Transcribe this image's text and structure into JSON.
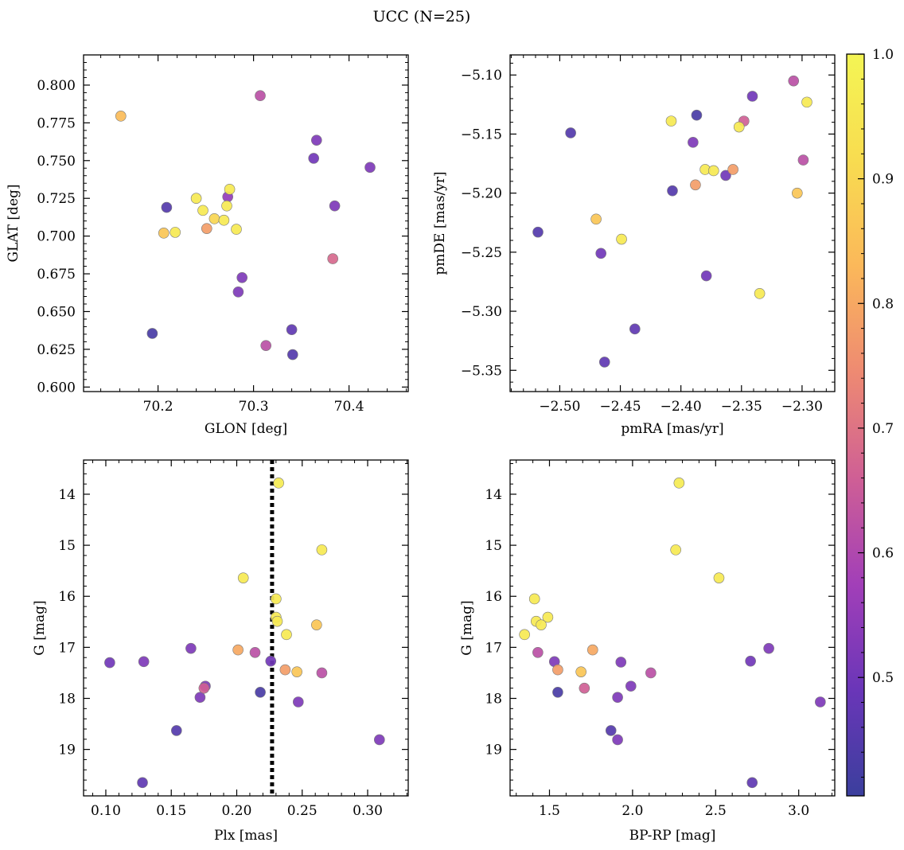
{
  "suptitle": "UCC (N=25)",
  "colorbar": {
    "range": [
      0.405,
      1.0
    ],
    "ticks": [
      0.5,
      0.6,
      0.7,
      0.8,
      0.9,
      1.0
    ],
    "tick_labels": [
      "0.5",
      "0.6",
      "0.7",
      "0.8",
      "0.9",
      "1.0"
    ],
    "colormap": "plasma",
    "stops": [
      "#3b3f9d",
      "#6a36b8",
      "#a23fb8",
      "#cf5f95",
      "#ee8a72",
      "#fbb85a",
      "#f8dc50",
      "#f4f554"
    ]
  },
  "chart_data": [
    {
      "type": "scatter",
      "title": "",
      "xlabel": "GLON [deg]",
      "ylabel": "GLAT [deg]",
      "xlim": [
        70.122,
        70.462
      ],
      "ylim": [
        0.597,
        0.82
      ],
      "y_inverted": false,
      "xticks": [
        70.2,
        70.3,
        70.4
      ],
      "xtick_labels": [
        "70.2",
        "70.3",
        "70.4"
      ],
      "yticks": [
        0.6,
        0.625,
        0.65,
        0.675,
        0.7,
        0.725,
        0.75,
        0.775,
        0.8
      ],
      "ytick_labels": [
        "0.600",
        "0.625",
        "0.650",
        "0.675",
        "0.700",
        "0.725",
        "0.750",
        "0.775",
        "0.800"
      ],
      "points": [
        {
          "x": 70.161,
          "y": 0.7795,
          "c": 0.84
        },
        {
          "x": 70.307,
          "y": 0.793,
          "c": 0.62
        },
        {
          "x": 70.366,
          "y": 0.7635,
          "c": 0.52
        },
        {
          "x": 70.363,
          "y": 0.7515,
          "c": 0.5
        },
        {
          "x": 70.422,
          "y": 0.7455,
          "c": 0.52
        },
        {
          "x": 70.385,
          "y": 0.72,
          "c": 0.52
        },
        {
          "x": 70.209,
          "y": 0.719,
          "c": 0.45
        },
        {
          "x": 70.24,
          "y": 0.725,
          "c": 0.96
        },
        {
          "x": 70.273,
          "y": 0.726,
          "c": 0.55
        },
        {
          "x": 70.275,
          "y": 0.731,
          "c": 0.96
        },
        {
          "x": 70.247,
          "y": 0.717,
          "c": 0.96
        },
        {
          "x": 70.259,
          "y": 0.7115,
          "c": 0.9
        },
        {
          "x": 70.269,
          "y": 0.7105,
          "c": 0.96
        },
        {
          "x": 70.272,
          "y": 0.72,
          "c": 0.96
        },
        {
          "x": 70.206,
          "y": 0.702,
          "c": 0.86
        },
        {
          "x": 70.218,
          "y": 0.7025,
          "c": 0.96
        },
        {
          "x": 70.251,
          "y": 0.705,
          "c": 0.78
        },
        {
          "x": 70.282,
          "y": 0.7045,
          "c": 0.96
        },
        {
          "x": 70.383,
          "y": 0.685,
          "c": 0.68
        },
        {
          "x": 70.288,
          "y": 0.6725,
          "c": 0.52
        },
        {
          "x": 70.284,
          "y": 0.663,
          "c": 0.52
        },
        {
          "x": 70.194,
          "y": 0.6355,
          "c": 0.43
        },
        {
          "x": 70.313,
          "y": 0.6275,
          "c": 0.62
        },
        {
          "x": 70.34,
          "y": 0.638,
          "c": 0.47
        },
        {
          "x": 70.341,
          "y": 0.6215,
          "c": 0.45
        }
      ]
    },
    {
      "type": "scatter",
      "title": "",
      "xlabel": "pmRA [mas/yr]",
      "ylabel": "pmDE [mas/yr]",
      "xlim": [
        -2.541,
        -2.273
      ],
      "ylim": [
        -5.368,
        -5.083
      ],
      "y_inverted": false,
      "xticks": [
        -2.5,
        -2.45,
        -2.4,
        -2.35,
        -2.3
      ],
      "xtick_labels": [
        "−2.50",
        "−2.45",
        "−2.40",
        "−2.35",
        "−2.30"
      ],
      "yticks": [
        -5.35,
        -5.3,
        -5.25,
        -5.2,
        -5.15,
        -5.1
      ],
      "ytick_labels": [
        "−5.35",
        "−5.30",
        "−5.25",
        "−5.20",
        "−5.15",
        "−5.10"
      ],
      "points": [
        {
          "x": -2.307,
          "y": -5.105,
          "c": 0.62
        },
        {
          "x": -2.296,
          "y": -5.123,
          "c": 0.96
        },
        {
          "x": -2.341,
          "y": -5.118,
          "c": 0.5
        },
        {
          "x": -2.387,
          "y": -5.134,
          "c": 0.43
        },
        {
          "x": -2.348,
          "y": -5.139,
          "c": 0.66
        },
        {
          "x": -2.352,
          "y": -5.144,
          "c": 0.96
        },
        {
          "x": -2.408,
          "y": -5.139,
          "c": 0.96
        },
        {
          "x": -2.491,
          "y": -5.149,
          "c": 0.45
        },
        {
          "x": -2.39,
          "y": -5.157,
          "c": 0.52
        },
        {
          "x": -2.299,
          "y": -5.172,
          "c": 0.62
        },
        {
          "x": -2.38,
          "y": -5.18,
          "c": 0.96
        },
        {
          "x": -2.373,
          "y": -5.181,
          "c": 0.96
        },
        {
          "x": -2.357,
          "y": -5.18,
          "c": 0.78
        },
        {
          "x": -2.363,
          "y": -5.185,
          "c": 0.5
        },
        {
          "x": -2.388,
          "y": -5.193,
          "c": 0.78
        },
        {
          "x": -2.407,
          "y": -5.198,
          "c": 0.45
        },
        {
          "x": -2.304,
          "y": -5.2,
          "c": 0.86
        },
        {
          "x": -2.47,
          "y": -5.222,
          "c": 0.86
        },
        {
          "x": -2.518,
          "y": -5.233,
          "c": 0.45
        },
        {
          "x": -2.449,
          "y": -5.239,
          "c": 0.96
        },
        {
          "x": -2.466,
          "y": -5.251,
          "c": 0.5
        },
        {
          "x": -2.379,
          "y": -5.27,
          "c": 0.5
        },
        {
          "x": -2.335,
          "y": -5.285,
          "c": 0.96
        },
        {
          "x": -2.438,
          "y": -5.315,
          "c": 0.47
        },
        {
          "x": -2.463,
          "y": -5.343,
          "c": 0.47
        }
      ]
    },
    {
      "type": "scatter",
      "title": "",
      "xlabel": "Plx [mas]",
      "ylabel": "G [mag]",
      "xlim": [
        0.083,
        0.331
      ],
      "ylim": [
        19.91,
        13.33
      ],
      "y_inverted": true,
      "xticks": [
        0.1,
        0.15,
        0.2,
        0.25,
        0.3
      ],
      "xtick_labels": [
        "0.10",
        "0.15",
        "0.20",
        "0.25",
        "0.30"
      ],
      "yticks": [
        14,
        15,
        16,
        17,
        18,
        19
      ],
      "ytick_labels": [
        "14",
        "15",
        "16",
        "17",
        "18",
        "19"
      ],
      "vline_x": 0.227,
      "points": [
        {
          "x": 0.232,
          "y": 13.78,
          "c": 0.97
        },
        {
          "x": 0.265,
          "y": 15.09,
          "c": 0.96
        },
        {
          "x": 0.205,
          "y": 15.64,
          "c": 0.96
        },
        {
          "x": 0.23,
          "y": 16.05,
          "c": 0.96
        },
        {
          "x": 0.23,
          "y": 16.41,
          "c": 0.96
        },
        {
          "x": 0.231,
          "y": 16.49,
          "c": 0.96
        },
        {
          "x": 0.238,
          "y": 16.75,
          "c": 0.96
        },
        {
          "x": 0.261,
          "y": 16.56,
          "c": 0.86
        },
        {
          "x": 0.201,
          "y": 17.05,
          "c": 0.8
        },
        {
          "x": 0.214,
          "y": 17.1,
          "c": 0.62
        },
        {
          "x": 0.226,
          "y": 17.27,
          "c": 0.5
        },
        {
          "x": 0.237,
          "y": 17.44,
          "c": 0.78
        },
        {
          "x": 0.246,
          "y": 17.48,
          "c": 0.86
        },
        {
          "x": 0.265,
          "y": 17.5,
          "c": 0.62
        },
        {
          "x": 0.165,
          "y": 17.02,
          "c": 0.52
        },
        {
          "x": 0.129,
          "y": 17.28,
          "c": 0.52
        },
        {
          "x": 0.103,
          "y": 17.3,
          "c": 0.5
        },
        {
          "x": 0.176,
          "y": 17.76,
          "c": 0.52
        },
        {
          "x": 0.175,
          "y": 17.8,
          "c": 0.66
        },
        {
          "x": 0.172,
          "y": 17.98,
          "c": 0.52
        },
        {
          "x": 0.218,
          "y": 17.88,
          "c": 0.43
        },
        {
          "x": 0.247,
          "y": 18.07,
          "c": 0.52
        },
        {
          "x": 0.154,
          "y": 18.63,
          "c": 0.45
        },
        {
          "x": 0.309,
          "y": 18.81,
          "c": 0.52
        },
        {
          "x": 0.128,
          "y": 19.65,
          "c": 0.47
        }
      ]
    },
    {
      "type": "scatter",
      "title": "",
      "xlabel": "BP-RP [mag]",
      "ylabel": "G [mag]",
      "xlim": [
        1.263,
        3.217
      ],
      "ylim": [
        19.91,
        13.33
      ],
      "y_inverted": true,
      "xticks": [
        1.5,
        2.0,
        2.5,
        3.0
      ],
      "xtick_labels": [
        "1.5",
        "2.0",
        "2.5",
        "3.0"
      ],
      "yticks": [
        14,
        15,
        16,
        17,
        18,
        19
      ],
      "ytick_labels": [
        "14",
        "15",
        "16",
        "17",
        "18",
        "19"
      ],
      "points": [
        {
          "x": 2.28,
          "y": 13.78,
          "c": 0.97
        },
        {
          "x": 2.26,
          "y": 15.09,
          "c": 0.96
        },
        {
          "x": 2.52,
          "y": 15.64,
          "c": 0.96
        },
        {
          "x": 1.41,
          "y": 16.05,
          "c": 0.96
        },
        {
          "x": 1.42,
          "y": 16.49,
          "c": 0.96
        },
        {
          "x": 1.49,
          "y": 16.41,
          "c": 0.96
        },
        {
          "x": 1.45,
          "y": 16.56,
          "c": 0.96
        },
        {
          "x": 1.35,
          "y": 16.75,
          "c": 0.96
        },
        {
          "x": 1.43,
          "y": 17.1,
          "c": 0.62
        },
        {
          "x": 1.53,
          "y": 17.28,
          "c": 0.52
        },
        {
          "x": 1.55,
          "y": 17.44,
          "c": 0.78
        },
        {
          "x": 1.76,
          "y": 17.05,
          "c": 0.8
        },
        {
          "x": 1.69,
          "y": 17.48,
          "c": 0.86
        },
        {
          "x": 1.93,
          "y": 17.29,
          "c": 0.52
        },
        {
          "x": 2.11,
          "y": 17.5,
          "c": 0.62
        },
        {
          "x": 1.71,
          "y": 17.8,
          "c": 0.66
        },
        {
          "x": 1.55,
          "y": 17.88,
          "c": 0.43
        },
        {
          "x": 1.99,
          "y": 17.76,
          "c": 0.52
        },
        {
          "x": 1.91,
          "y": 17.98,
          "c": 0.52
        },
        {
          "x": 2.71,
          "y": 17.27,
          "c": 0.5
        },
        {
          "x": 2.82,
          "y": 17.02,
          "c": 0.52
        },
        {
          "x": 3.13,
          "y": 18.07,
          "c": 0.52
        },
        {
          "x": 1.87,
          "y": 18.63,
          "c": 0.45
        },
        {
          "x": 1.91,
          "y": 18.81,
          "c": 0.52
        },
        {
          "x": 2.72,
          "y": 19.65,
          "c": 0.47
        }
      ]
    }
  ]
}
